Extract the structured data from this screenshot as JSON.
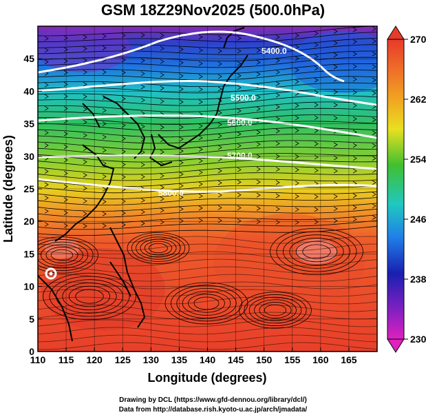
{
  "title": "GSM 18Z29Nov2025 (500.0hPa)",
  "xlabel": "Longitude (degrees)",
  "ylabel": "Latitude  (degrees)",
  "xticks": [
    "110",
    "115",
    "120",
    "125",
    "130",
    "135",
    "140",
    "145",
    "150",
    "155",
    "160",
    "165"
  ],
  "yticks": [
    "0",
    "5",
    "10",
    "15",
    "20",
    "25",
    "30",
    "35",
    "40",
    "45"
  ],
  "colorbar": {
    "ticks": [
      "270",
      "262",
      "254",
      "246",
      "238",
      "230"
    ],
    "colors": [
      "#e8402a",
      "#f07828",
      "#f0c020",
      "#38b830",
      "#20c8c0",
      "#2060e0",
      "#1818a0",
      "#c020c0"
    ]
  },
  "contours": [
    {
      "label": "5400.0"
    },
    {
      "label": "5500.0"
    },
    {
      "label": "5600.0"
    },
    {
      "label": "5700.0"
    },
    {
      "label": "5800.0"
    }
  ],
  "credits": {
    "line1": "Drawing by DCL (https://www.gfd-dennou.org/library/dcl/)",
    "line2": "Data from http://database.rish.kyoto-u.ac.jp/arch/jmadata/"
  }
}
